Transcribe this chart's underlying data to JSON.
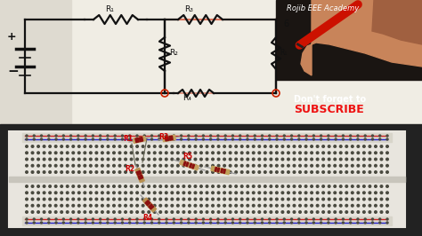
{
  "figsize": [
    4.74,
    2.66
  ],
  "dpi": 100,
  "paper_color": "#e8e4d8",
  "paper_color2": "#f0ede4",
  "circuit_line_color": "#111111",
  "circuit_lw": 1.6,
  "red_pen_color": "#cc2200",
  "hand_color": "#c8845a",
  "hand_dark": "#a06040",
  "text_academy": "Rojib EEE Academy",
  "text_forget": "Don't forget to",
  "text_subscribe": "SUBSCRIBE",
  "subscribe_color": "#ee1111",
  "text_color_white": "#ffffff",
  "breadboard_bg": "#222222",
  "breadboard_body": "#c0bdb0",
  "breadboard_inner": "#d8d5c8",
  "breadboard_hole": "#4a4a40",
  "rail_red": "#cc2222",
  "rail_blue": "#2222cc",
  "resistor_body": "#c8a050",
  "resistor_band": "#8b4513",
  "resistor_lead": "#888888",
  "resistor_label_color": "#cc0000",
  "highlight_red": "#cc2200",
  "R1_label": "R1",
  "R2_label": "R2",
  "R3_label": "R3",
  "R4_label": "R4",
  "R5_label": "R5"
}
